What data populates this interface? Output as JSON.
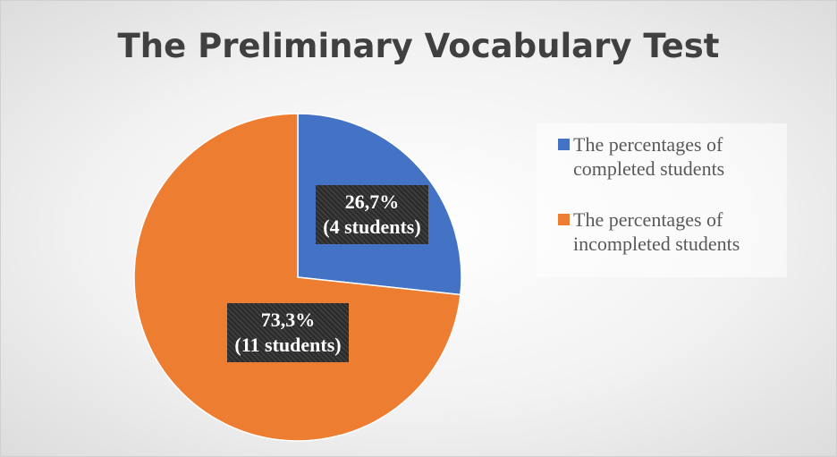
{
  "chart_data": {
    "type": "pie",
    "title": "The Preliminary Vocabulary Test",
    "categories": [
      "The percentages of completed students",
      "The percentages of incompleted students"
    ],
    "values": [
      26.7,
      73.3
    ],
    "value_labels": [
      "26,7%",
      "73,3%"
    ],
    "count_labels": [
      "(4 students)",
      "(11 students)"
    ],
    "colors": [
      "#4472c4",
      "#ed7d31"
    ],
    "legend": "right"
  }
}
